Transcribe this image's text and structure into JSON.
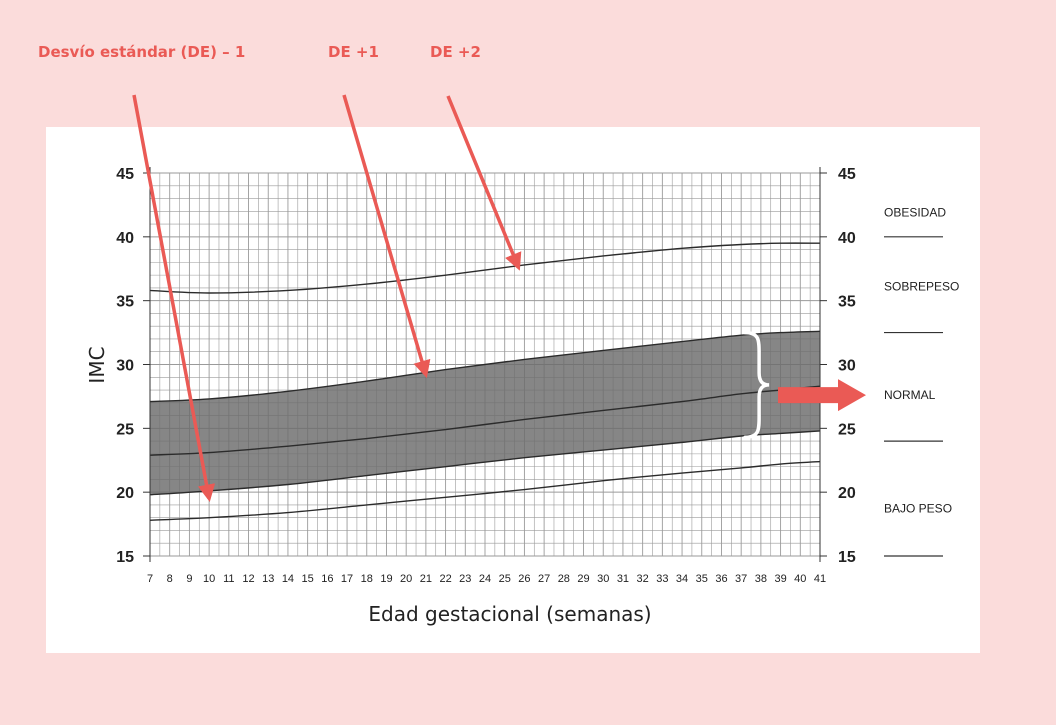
{
  "annotations": {
    "sd_minus_1": "Desvío estándar (DE) – 1",
    "sd_plus_1": "DE +1",
    "sd_plus_2": "DE +2"
  },
  "colors": {
    "background": "#fbdcdb",
    "arrow": "#ea5a55",
    "band": "#6b6b6b",
    "grid": "#9a9a9a",
    "line": "#2b2b2b"
  },
  "chart_data": {
    "type": "line",
    "xlabel": "Edad gestacional (semanas)",
    "ylabel": "IMC",
    "xlim": [
      7,
      41
    ],
    "ylim": [
      15,
      45
    ],
    "x_ticks": [
      7,
      8,
      9,
      10,
      11,
      12,
      13,
      14,
      15,
      16,
      17,
      18,
      19,
      20,
      21,
      22,
      23,
      24,
      25,
      26,
      27,
      28,
      29,
      30,
      31,
      32,
      33,
      34,
      35,
      36,
      37,
      38,
      39,
      40,
      41
    ],
    "y_ticks": [
      15,
      20,
      25,
      30,
      35,
      40,
      45
    ],
    "grid": true,
    "shaded_band": [
      "DE -1",
      "DE +1"
    ],
    "categories_right": [
      "OBESIDAD",
      "SOBREPESO",
      "NORMAL",
      "BAJO PESO"
    ],
    "category_dividers": [
      40,
      32.5,
      24,
      15
    ],
    "series": [
      {
        "x": [
          7,
          10,
          14,
          18,
          22,
          26,
          30,
          34,
          37,
          39,
          41
        ],
        "values": [
          35.8,
          35.6,
          35.8,
          36.3,
          37.0,
          37.8,
          38.5,
          39.1,
          39.4,
          39.5,
          39.5
        ]
      },
      {
        "x": [
          7,
          10,
          14,
          18,
          22,
          26,
          30,
          34,
          37,
          39,
          41
        ],
        "values": [
          27.1,
          27.3,
          27.9,
          28.7,
          29.6,
          30.4,
          31.1,
          31.8,
          32.3,
          32.5,
          32.6
        ]
      },
      {
        "x": [
          7,
          10,
          14,
          18,
          22,
          26,
          30,
          34,
          37,
          39,
          41
        ],
        "values": [
          22.9,
          23.1,
          23.6,
          24.2,
          24.9,
          25.7,
          26.4,
          27.1,
          27.7,
          28.0,
          28.3
        ]
      },
      {
        "x": [
          7,
          10,
          14,
          18,
          22,
          26,
          30,
          34,
          37,
          39,
          41
        ],
        "values": [
          19.8,
          20.1,
          20.6,
          21.3,
          22.0,
          22.7,
          23.3,
          23.9,
          24.4,
          24.6,
          24.8
        ]
      },
      {
        "x": [
          7,
          10,
          14,
          18,
          22,
          26,
          30,
          34,
          37,
          39,
          41
        ],
        "values": [
          17.8,
          18.0,
          18.4,
          19.0,
          19.6,
          20.2,
          20.9,
          21.5,
          21.9,
          22.2,
          22.4
        ]
      }
    ]
  }
}
